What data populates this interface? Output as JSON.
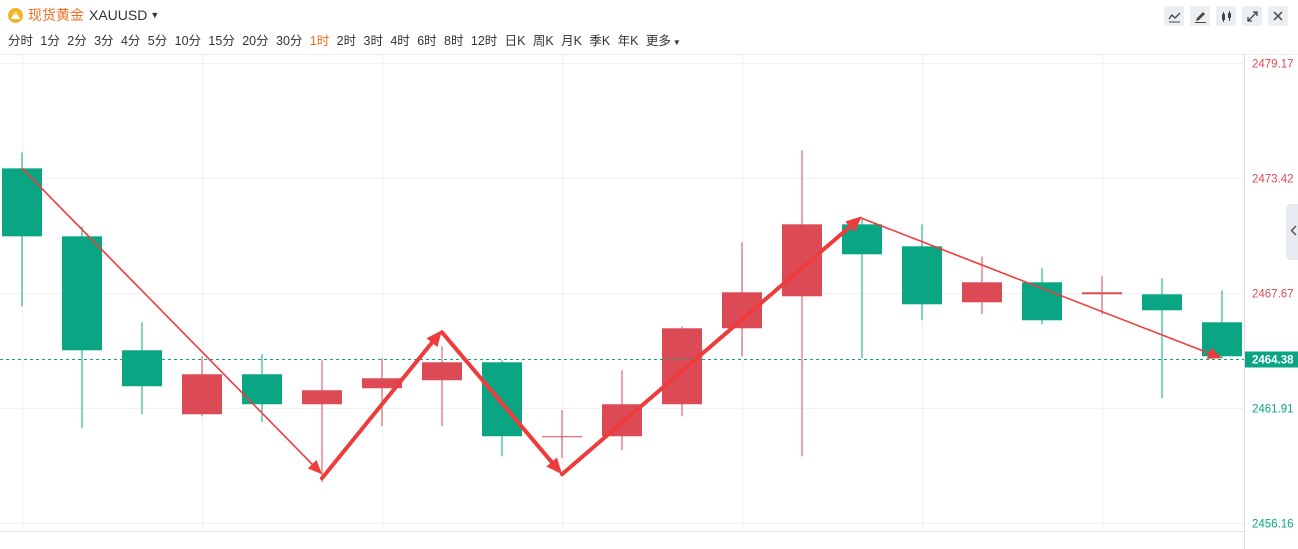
{
  "header": {
    "title_cn": "现货黄金",
    "symbol": "XAUUSD",
    "dropdown_icon": "caret-down-icon",
    "intervals": [
      "分时",
      "1分",
      "2分",
      "3分",
      "4分",
      "5分",
      "10分",
      "15分",
      "20分",
      "30分",
      "1时",
      "2时",
      "3时",
      "4时",
      "6时",
      "8时",
      "12时",
      "日K",
      "周K",
      "月K",
      "季K",
      "年K",
      "更多"
    ],
    "active_interval": "1时",
    "toolbar_icons": [
      "indicator-icon",
      "draw-icon",
      "candle-type-icon",
      "fullscreen-icon",
      "close-icon"
    ]
  },
  "colors": {
    "up": "#dc4a55",
    "down": "#0aa684",
    "accent": "#f26b1d",
    "arrow": "#ee3b3b",
    "last_price_bg": "#0aa684"
  },
  "chart_data": {
    "type": "candlestick",
    "y_ticks": [
      "2479.17",
      "2473.42",
      "2467.67",
      "2461.91",
      "2456.16"
    ],
    "ylim": [
      2456.16,
      2479.17
    ],
    "last_price": "2464.38",
    "grid": true,
    "candles": [
      {
        "o": 2473.9,
        "h": 2474.7,
        "l": 2467.0,
        "c": 2470.5
      },
      {
        "o": 2470.5,
        "h": 2471.0,
        "l": 2460.9,
        "c": 2464.8
      },
      {
        "o": 2464.8,
        "h": 2466.2,
        "l": 2461.6,
        "c": 2463.0
      },
      {
        "o": 2461.6,
        "h": 2464.5,
        "l": 2461.5,
        "c": 2463.6
      },
      {
        "o": 2463.6,
        "h": 2464.6,
        "l": 2461.2,
        "c": 2462.1
      },
      {
        "o": 2462.1,
        "h": 2464.3,
        "l": 2458.2,
        "c": 2462.8
      },
      {
        "o": 2462.9,
        "h": 2464.4,
        "l": 2461.0,
        "c": 2463.4
      },
      {
        "o": 2463.3,
        "h": 2465.0,
        "l": 2461.0,
        "c": 2464.2
      },
      {
        "o": 2464.2,
        "h": 2464.3,
        "l": 2459.5,
        "c": 2460.5
      },
      {
        "o": 2460.5,
        "h": 2461.8,
        "l": 2459.4,
        "c": 2460.5
      },
      {
        "o": 2460.5,
        "h": 2463.8,
        "l": 2459.8,
        "c": 2462.1
      },
      {
        "o": 2462.1,
        "h": 2466.0,
        "l": 2461.5,
        "c": 2465.9
      },
      {
        "o": 2465.9,
        "h": 2470.2,
        "l": 2464.5,
        "c": 2467.7
      },
      {
        "o": 2467.5,
        "h": 2474.8,
        "l": 2459.5,
        "c": 2471.1
      },
      {
        "o": 2471.1,
        "h": 2471.4,
        "l": 2464.4,
        "c": 2469.6
      },
      {
        "o": 2470.0,
        "h": 2471.1,
        "l": 2466.3,
        "c": 2467.1
      },
      {
        "o": 2467.2,
        "h": 2469.5,
        "l": 2466.6,
        "c": 2468.2
      },
      {
        "o": 2468.2,
        "h": 2468.9,
        "l": 2466.1,
        "c": 2466.3
      },
      {
        "o": 2467.6,
        "h": 2468.5,
        "l": 2466.6,
        "c": 2467.7
      },
      {
        "o": 2467.6,
        "h": 2468.4,
        "l": 2462.4,
        "c": 2466.8
      },
      {
        "o": 2466.2,
        "h": 2467.8,
        "l": 2464.4,
        "c": 2464.5
      }
    ],
    "trend_lines": [
      {
        "from": [
          0,
          2473.9
        ],
        "to": [
          5,
          2458.6
        ],
        "head": true,
        "heavy": false
      },
      {
        "from": [
          5,
          2458.4
        ],
        "to": [
          7,
          2465.8
        ],
        "head": true,
        "heavy": true
      },
      {
        "from": [
          7,
          2465.7
        ],
        "to": [
          9,
          2458.6
        ],
        "head": true,
        "heavy": true
      },
      {
        "from": [
          9,
          2458.6
        ],
        "to": [
          14,
          2471.5
        ],
        "head": true,
        "heavy": true
      },
      {
        "from": [
          14,
          2471.4
        ],
        "to": [
          20,
          2464.4
        ],
        "head": true,
        "heavy": false
      }
    ]
  }
}
